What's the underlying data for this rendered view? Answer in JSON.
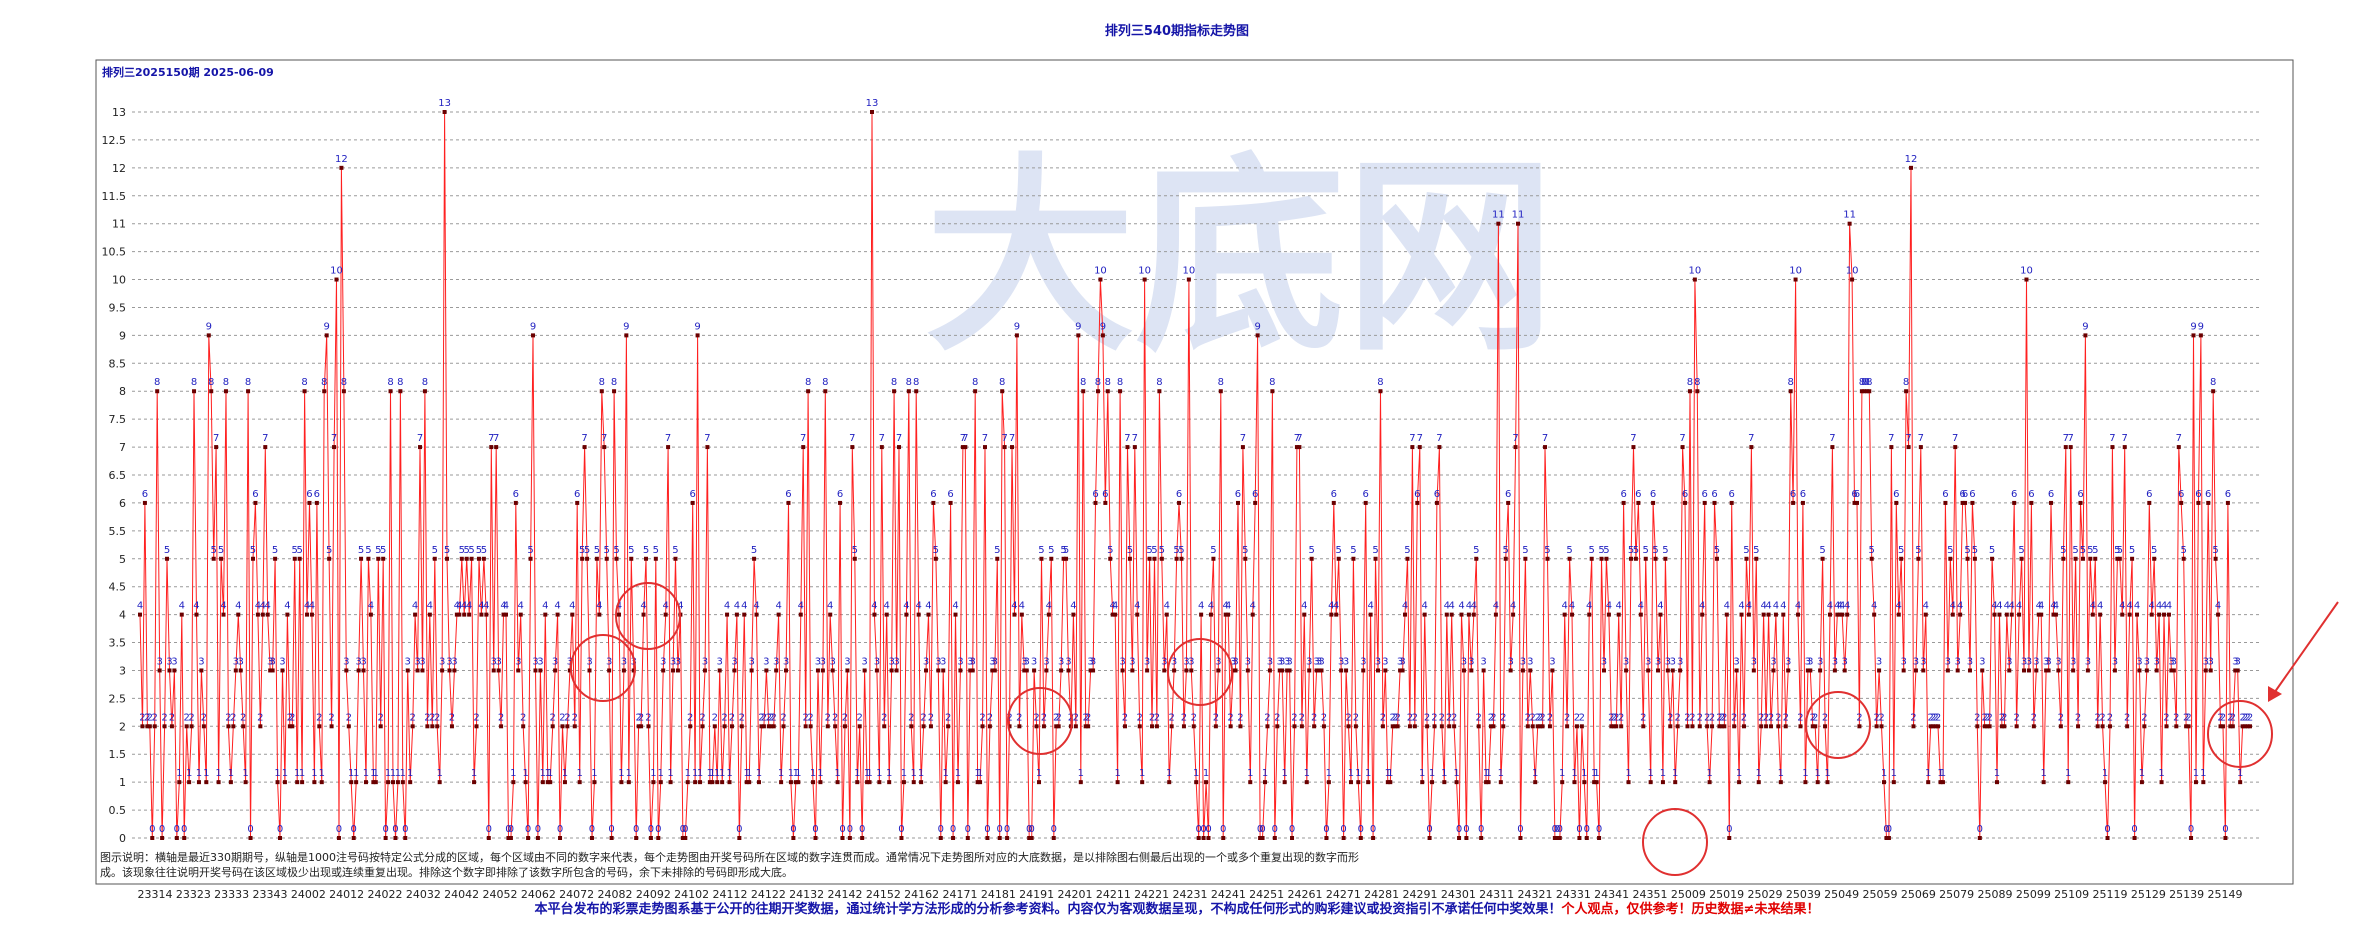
{
  "header": {
    "title": "排列三540期指标走势图"
  },
  "footer": {
    "main": "本平台发布的彩票走势图系基于公开的往期开奖数据，通过统计学方法形成的分析参考资料。内容仅为客观数据呈现，不构成任何形式的购彩建议或投资指引不承诺任何中奖效果！",
    "warning": "个人观点，仅供参考！历史数据≠未来结果！"
  },
  "chart_data": {
    "type": "line",
    "title": "排列三540期指标走势图",
    "subtitle": "排列三2025150期  2025-06-09",
    "watermark": "大底网",
    "explanation_lines": [
      "图示说明：横轴是最近330期期号，纵轴是1000注号码按特定公式分成的区域，每个区域由不同的数字来代表，每个走势图由开奖号码所在区域的数字连贯而成。通常情况下走势图所对应的大底数据，是以排除图右侧最后出现的一个或多个重复出现的数字而形",
      "成。该现象往往说明开奖号码在该区域极少出现或连续重复出现。排除这个数字即排除了该数字所包含的号码，余下未排除的号码即形成大底。"
    ],
    "ylim": [
      0,
      13.5
    ],
    "yticks": [
      0,
      0.5,
      1,
      1.5,
      2,
      2.5,
      3,
      3.5,
      4,
      4.5,
      5,
      5.5,
      6,
      6.5,
      7,
      7.5,
      8,
      8.5,
      9,
      9.5,
      10,
      10.5,
      11,
      11.5,
      12,
      12.5,
      13
    ],
    "xtick_labels": [
      "23314",
      "23323",
      "23333",
      "23343",
      "24002",
      "24012",
      "24022",
      "24032",
      "24042",
      "24052",
      "24062",
      "24072",
      "24082",
      "24092",
      "24102",
      "24112",
      "24122",
      "24132",
      "24142",
      "24152",
      "24162",
      "24171",
      "24181",
      "24191",
      "24201",
      "24211",
      "24221",
      "24231",
      "24241",
      "24251",
      "24261",
      "24271",
      "24281",
      "24291",
      "24301",
      "24311",
      "24321",
      "24331",
      "24341",
      "24351",
      "25009",
      "25019",
      "25029",
      "25039",
      "25049",
      "25059",
      "25069",
      "25079",
      "25089",
      "25099",
      "25109",
      "25119",
      "25129",
      "25139",
      "25149"
    ],
    "grid": "horizontal-dashed",
    "series": [
      {
        "color": "#ff2020",
        "marker_color": "#6a0000",
        "values": [
          4,
          2,
          6,
          2,
          2,
          0,
          2,
          8,
          3,
          0,
          2,
          5,
          3,
          2,
          3,
          0,
          1,
          4,
          0,
          2,
          1,
          2,
          8,
          4,
          1,
          3,
          2,
          1,
          9,
          8,
          5,
          7,
          1,
          5,
          4,
          8,
          2,
          1,
          2,
          3,
          4,
          3,
          2,
          1,
          8,
          0,
          5,
          6,
          4,
          2,
          4,
          7,
          4,
          3,
          3,
          5,
          1,
          0,
          3,
          1,
          4,
          2,
          2,
          5,
          1,
          5,
          1,
          8,
          4,
          6,
          4,
          1,
          6,
          2,
          1,
          8,
          9,
          5,
          2,
          7,
          10,
          0,
          12,
          8,
          3,
          2,
          1,
          0,
          1,
          3,
          5,
          3,
          1,
          5,
          4,
          1,
          1,
          5,
          2,
          5,
          0,
          1,
          8,
          1,
          0,
          1,
          8,
          1,
          0,
          3,
          1,
          2,
          4,
          3,
          7,
          3,
          8,
          2,
          4,
          2,
          5,
          2,
          1,
          3,
          13,
          5,
          3,
          2,
          3,
          4,
          4,
          5,
          4,
          5,
          4,
          5,
          1,
          2,
          5,
          4,
          5,
          4,
          0,
          7,
          3,
          7,
          3,
          2,
          4,
          4,
          0,
          0,
          1,
          6,
          3,
          4,
          2,
          1,
          0,
          5,
          9,
          3,
          0,
          3,
          1,
          4,
          1,
          1,
          2,
          3,
          4,
          0,
          2,
          1,
          2,
          3,
          4,
          2,
          6,
          1,
          5,
          7,
          5,
          3,
          0,
          1,
          5,
          4,
          8,
          7,
          5,
          3,
          0,
          8,
          5,
          4,
          1,
          3,
          9,
          1,
          5,
          3,
          0,
          2,
          2,
          4,
          5,
          2,
          0,
          1,
          5,
          0,
          1,
          3,
          4,
          7,
          1,
          3,
          5,
          3,
          4,
          0,
          0,
          1,
          2,
          6,
          1,
          9,
          1,
          2,
          3,
          7,
          1,
          1,
          2,
          1,
          3,
          1,
          2,
          4,
          1,
          2,
          3,
          4,
          0,
          2,
          4,
          1,
          1,
          3,
          5,
          4,
          1,
          2,
          2,
          3,
          2,
          2,
          2,
          3,
          4,
          1,
          2,
          3,
          6,
          1,
          0,
          1,
          1,
          4,
          7,
          2,
          8,
          2,
          1,
          0,
          3,
          1,
          3,
          8,
          2,
          4,
          3,
          2,
          1,
          6,
          0,
          2,
          3,
          0,
          7,
          5,
          1,
          2,
          0,
          3,
          1,
          1,
          13,
          4,
          3,
          1,
          7,
          2,
          4,
          1,
          3,
          8,
          3,
          7,
          0,
          1,
          4,
          8,
          2,
          1,
          8,
          4,
          1,
          2,
          3,
          4,
          2,
          6,
          5,
          3,
          0,
          3,
          1,
          2,
          6,
          0,
          4,
          1,
          3,
          7,
          7,
          0,
          3,
          3,
          8,
          1,
          1,
          2,
          7,
          0,
          2,
          3,
          3,
          5,
          0,
          8,
          7,
          0,
          2,
          7,
          4,
          9,
          2,
          4,
          3,
          3,
          0,
          0,
          3,
          2,
          1,
          5,
          2,
          3,
          4,
          5,
          0,
          2,
          2,
          3,
          5,
          5,
          3,
          2,
          4,
          2,
          9,
          1,
          8,
          2,
          2,
          3,
          3,
          6,
          8,
          10,
          9,
          6,
          8,
          5,
          4,
          4,
          1,
          8,
          3,
          2,
          7,
          5,
          3,
          7,
          4,
          2,
          1,
          10,
          3,
          5,
          2,
          5,
          2,
          8,
          5,
          3,
          4,
          1,
          2,
          3,
          5,
          6,
          5,
          2,
          3,
          10,
          3,
          2,
          1,
          0,
          4,
          0,
          1,
          0,
          4,
          5,
          2,
          3,
          8,
          0,
          4,
          4,
          2,
          3,
          3,
          6,
          2,
          7,
          5,
          3,
          1,
          4,
          6,
          9,
          0,
          0,
          1,
          2,
          3,
          8,
          0,
          2,
          3,
          3,
          1,
          3,
          3,
          0,
          2,
          7,
          7,
          2,
          4,
          1,
          3,
          5,
          2,
          3,
          3,
          3,
          2,
          0,
          1,
          4,
          6,
          4,
          5,
          3,
          0,
          3,
          2,
          1,
          5,
          2,
          1,
          0,
          3,
          6,
          1,
          4,
          0,
          5,
          3,
          8,
          2,
          3,
          1,
          1,
          2,
          2,
          2,
          3,
          3,
          4,
          5,
          2,
          7,
          2,
          6,
          7,
          1,
          4,
          2,
          0,
          1,
          2,
          6,
          7,
          2,
          1,
          4,
          2,
          4,
          2,
          1,
          0,
          4,
          3,
          0,
          4,
          3,
          4,
          5,
          2,
          0,
          3,
          1,
          1,
          2,
          2,
          4,
          11,
          1,
          2,
          5,
          6,
          3,
          4,
          7,
          11,
          0,
          3,
          5,
          2,
          3,
          2,
          1,
          2,
          2,
          2,
          7,
          5,
          2,
          3,
          0,
          0,
          0,
          1,
          4,
          2,
          5,
          4,
          1,
          2,
          0,
          2,
          1,
          0,
          4,
          5,
          1,
          1,
          0,
          5,
          3,
          5,
          4,
          2,
          2,
          2,
          4,
          2,
          6,
          3,
          1,
          5,
          7,
          5,
          6,
          4,
          2,
          5,
          3,
          1,
          6,
          5,
          3,
          4,
          1,
          5,
          3,
          2,
          3,
          1,
          2,
          3,
          7,
          6,
          2,
          8,
          2,
          10,
          8,
          2,
          4,
          6,
          2,
          1,
          2,
          6,
          5,
          2,
          2,
          2,
          4,
          0,
          6,
          2,
          3,
          1,
          4,
          2,
          5,
          4,
          7,
          3,
          5,
          1,
          2,
          4,
          2,
          4,
          2,
          3,
          4,
          2,
          1,
          4,
          2,
          3,
          8,
          6,
          10,
          4,
          2,
          6,
          1,
          3,
          3,
          2,
          2,
          1,
          3,
          5,
          2,
          1,
          4,
          7,
          3,
          4,
          4,
          4,
          3,
          4,
          11,
          10,
          6,
          6,
          2,
          8,
          8,
          8,
          8,
          5,
          4,
          2,
          3,
          2,
          1,
          0,
          0,
          7,
          1,
          6,
          4,
          5,
          3,
          8,
          7,
          12,
          2,
          3,
          5,
          7,
          3,
          4,
          1,
          2,
          2,
          2,
          2,
          1,
          1,
          6,
          3,
          5,
          4,
          7,
          3,
          4,
          6,
          6,
          5,
          3,
          6,
          5,
          2,
          0,
          3,
          2,
          2,
          2,
          5,
          4,
          1,
          4,
          2,
          2,
          4,
          3,
          4,
          6,
          2,
          4,
          5,
          3,
          10,
          3,
          6,
          2,
          3,
          4,
          4,
          1,
          3,
          3,
          6,
          4,
          4,
          3,
          2,
          5,
          7,
          1,
          7,
          3,
          5,
          2,
          6,
          5,
          9,
          3,
          5,
          4,
          5,
          2,
          4,
          2,
          1,
          0,
          2,
          7,
          3,
          5,
          5,
          4,
          7,
          2,
          4,
          5,
          0,
          4,
          3,
          1,
          2,
          3,
          6,
          4,
          5,
          3,
          4,
          1,
          4,
          2,
          4,
          3,
          3,
          2,
          7,
          6,
          5,
          2,
          2,
          0,
          9,
          1,
          6,
          9,
          1,
          3,
          6,
          3,
          8,
          5,
          4,
          2,
          2,
          0,
          6,
          2,
          2,
          3,
          3,
          1,
          2,
          2,
          2,
          2
        ]
      }
    ],
    "annotations": [
      "circles highlighting repeated values",
      "arrow pointing to final repeated value 2"
    ]
  }
}
